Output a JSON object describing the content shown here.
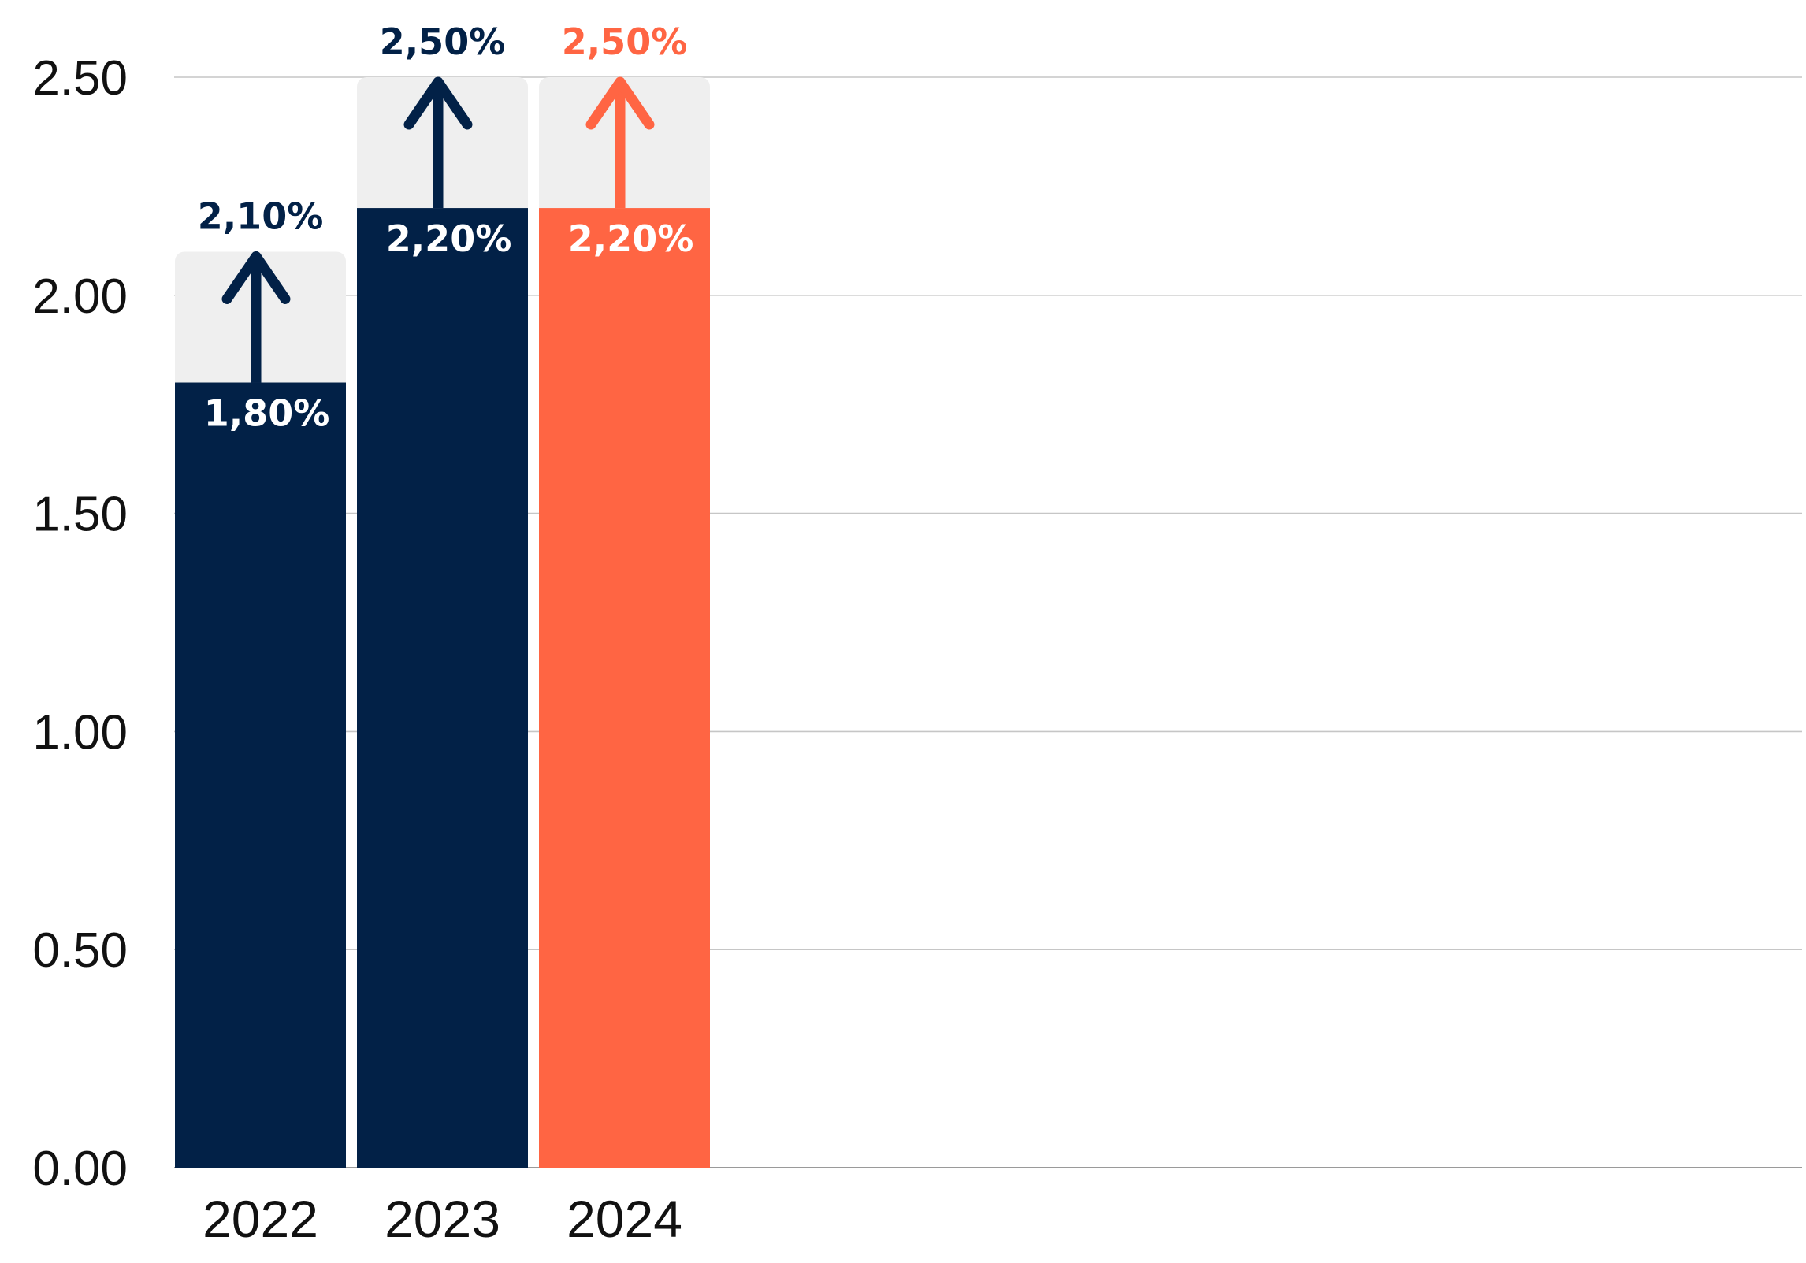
{
  "chart_data": {
    "type": "bar",
    "categories": [
      "2022",
      "2023",
      "2024"
    ],
    "series": [
      {
        "values": [
          1.8,
          2.2,
          2.2
        ],
        "labels": [
          "1,80%",
          "2,20%",
          "2,20%"
        ]
      },
      {
        "values": [
          2.1,
          2.5,
          2.5
        ],
        "labels": [
          "2,10%",
          "2,50%",
          "2,50%"
        ]
      }
    ],
    "bar_colors": [
      "#022147",
      "#022147",
      "#ff6543"
    ],
    "range_color": "#efefef",
    "y_ticks": [
      "0.00",
      "0.50",
      "1.00",
      "1.50",
      "2.00",
      "2.50"
    ],
    "ylim": [
      0,
      2.5
    ],
    "grid": true,
    "title": "",
    "xlabel": "",
    "ylabel": ""
  }
}
